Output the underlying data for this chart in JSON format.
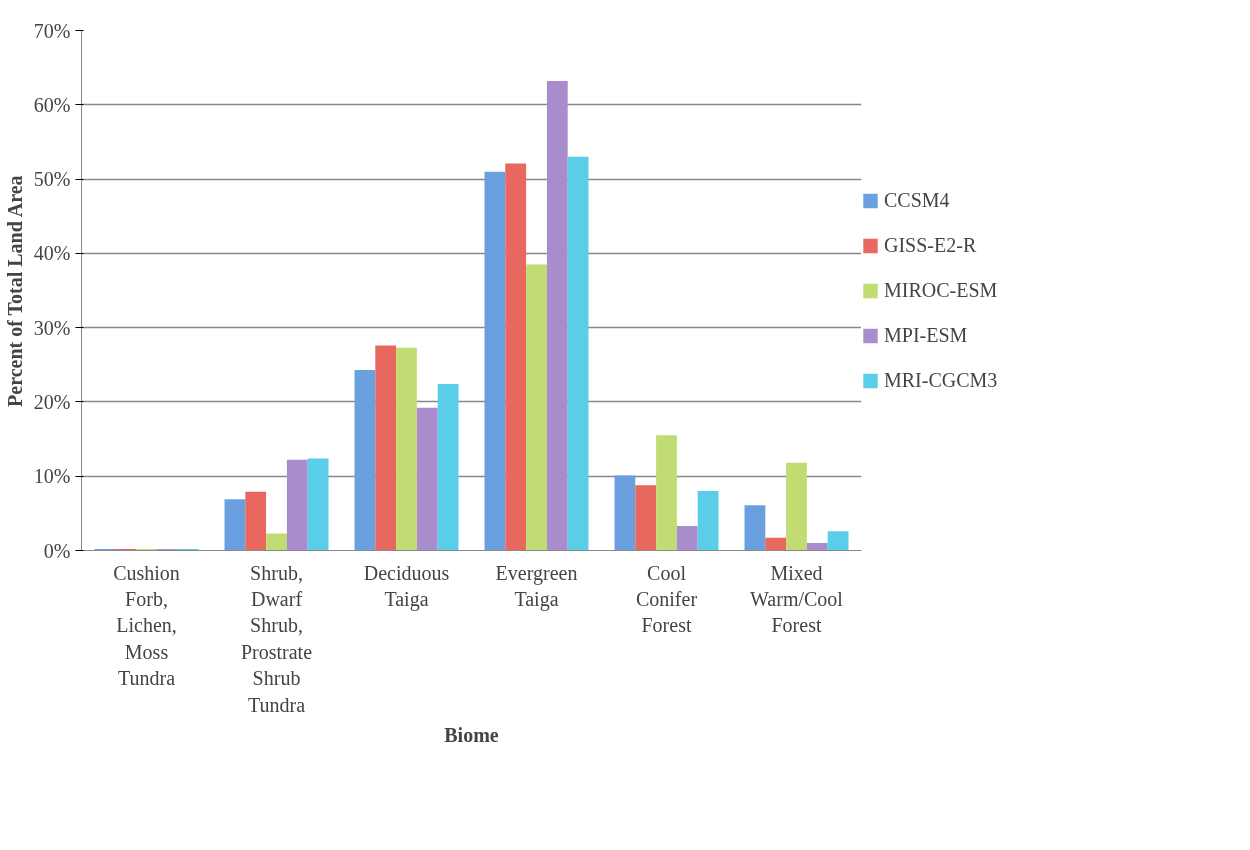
{
  "chart_data": {
    "type": "bar",
    "xlabel": "Biome",
    "ylabel": "Percent of Total Land Area",
    "categories": [
      "Cushion Forb, Lichen, Moss Tundra",
      "Shrub, Dwarf Shrub, Prostrate Shrub Tundra",
      "Deciduous Taiga",
      "Evergreen Taiga",
      "Cool Conifer Forest",
      "Mixed Warm/Cool Forest"
    ],
    "series": [
      {
        "name": "CCSM4",
        "color": "#6a9fe0",
        "values": [
          0.2,
          6.9,
          24.3,
          51.0,
          10.1,
          6.1
        ]
      },
      {
        "name": "GISS-E2-R",
        "color": "#e8675e",
        "values": [
          0.2,
          7.9,
          27.6,
          52.1,
          8.8,
          1.7
        ]
      },
      {
        "name": "MIROC-ESM",
        "color": "#c2dc74",
        "values": [
          0.2,
          2.3,
          27.3,
          38.5,
          15.5,
          11.8
        ]
      },
      {
        "name": "MPI-ESM",
        "color": "#a98ccc",
        "values": [
          0.2,
          12.2,
          19.2,
          63.2,
          3.3,
          1.0
        ]
      },
      {
        "name": "MRI-CGCM3",
        "color": "#5acde8",
        "values": [
          0.2,
          12.4,
          22.4,
          53.0,
          8.0,
          2.6
        ]
      }
    ],
    "ylim": [
      0,
      70
    ],
    "yticks": [
      {
        "value": 0,
        "label": "0%"
      },
      {
        "value": 10,
        "label": "10%"
      },
      {
        "value": 20,
        "label": "20%"
      },
      {
        "value": 30,
        "label": "30%"
      },
      {
        "value": 40,
        "label": "40%"
      },
      {
        "value": 50,
        "label": "50%"
      },
      {
        "value": 60,
        "label": "60%"
      },
      {
        "value": 70,
        "label": "70%"
      }
    ],
    "grid": "y",
    "legend": "right"
  }
}
